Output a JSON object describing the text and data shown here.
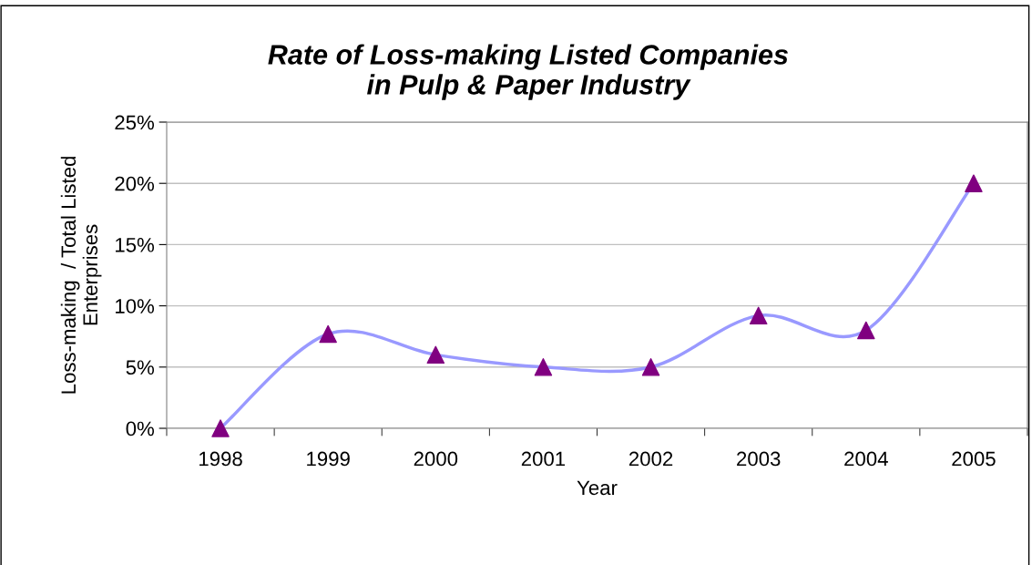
{
  "chart_data": {
    "type": "line",
    "title": "Rate of Loss-making Listed Companies\nin Pulp & Paper Industry",
    "xlabel": "Year",
    "ylabel": "Loss-making  / Total Listed\nEnterprises",
    "categories": [
      "1998",
      "1999",
      "2000",
      "2001",
      "2002",
      "2003",
      "2004",
      "2005"
    ],
    "series": [
      {
        "color": "#9999ff",
        "colors": [
          "#800080",
          "#800080",
          "#800080",
          "#800080",
          "#800080",
          "#800080",
          "#800080",
          "#800080"
        ],
        "values": [
          0,
          7.7,
          6.0,
          5.0,
          5.0,
          9.2,
          8.0,
          20.0
        ]
      }
    ],
    "ylim": [
      0,
      25
    ],
    "yticks": [
      {
        "value": 0,
        "label": "0%"
      },
      {
        "value": 5,
        "label": "5%"
      },
      {
        "value": 10,
        "label": "10%"
      },
      {
        "value": 15,
        "label": "15%"
      },
      {
        "value": 20,
        "label": "20%"
      },
      {
        "value": 25,
        "label": "25%"
      }
    ],
    "grid": "y",
    "marker": "triangle",
    "line_style": "solid",
    "legend": false
  }
}
